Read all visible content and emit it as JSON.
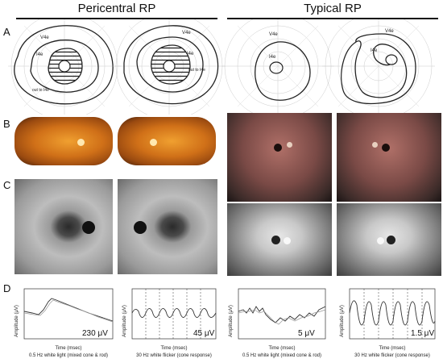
{
  "headers": {
    "left": "Pericentral RP",
    "right": "Typical RP"
  },
  "row_labels": {
    "a": "A",
    "b": "B",
    "c": "C",
    "d": "D"
  },
  "visual_fields": {
    "iso_labels": [
      "V4e",
      "I4e",
      "out to I4e"
    ]
  },
  "erg": [
    {
      "amplitude": "230 μV",
      "caption": "0.5 Hz white light (mixed cone & rod)",
      "x_label": "Time (msec)",
      "y_label": "Amplitude (μV)"
    },
    {
      "amplitude": "45 μV",
      "caption": "30 Hz white flicker (cone response)",
      "x_label": "Time (msec)",
      "y_label": "Amplitude (μV)"
    },
    {
      "amplitude": "5 μV",
      "caption": "0.5 Hz white light (mixed cone & rod)",
      "x_label": "Time (msec)",
      "y_label": "Amplitude (μV)"
    },
    {
      "amplitude": "1.5 μV",
      "caption": "30 Hz white flicker (cone response)",
      "x_label": "Time (msec)",
      "y_label": "Amplitude (μV)"
    }
  ],
  "colors": {
    "fundus_rp": "#d07018",
    "fundus_typical": "#7a4a46",
    "trace": "#333333"
  }
}
